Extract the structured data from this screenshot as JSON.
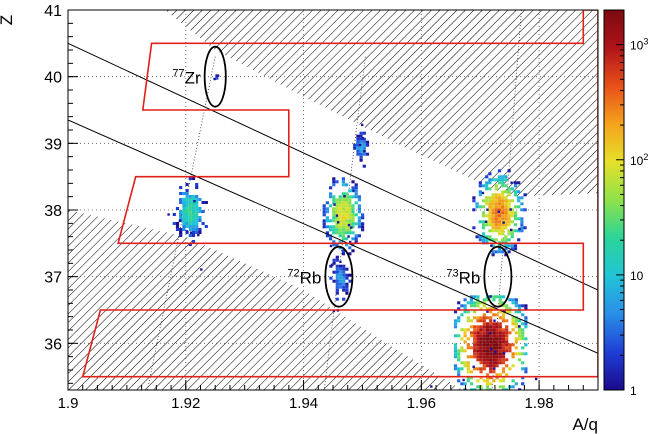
{
  "chart_data": {
    "type": "heatmap",
    "title": "",
    "xlabel": "A/q",
    "ylabel": "Z",
    "xlim": [
      1.9,
      1.99
    ],
    "ylim": [
      35.3,
      41.0
    ],
    "x_ticks": [
      "1.9",
      "1.92",
      "1.94",
      "1.96",
      "1.98"
    ],
    "x_tick_values": [
      1.9,
      1.92,
      1.94,
      1.96,
      1.98
    ],
    "y_ticks": [
      "36",
      "37",
      "38",
      "39",
      "40",
      "41"
    ],
    "y_tick_values": [
      36,
      37,
      38,
      39,
      40,
      41
    ],
    "grid": "dotted",
    "colorbar": {
      "scale": "log",
      "range": [
        1,
        2000
      ],
      "tick_values": [
        1,
        10,
        100,
        1000
      ],
      "labels": [
        {
          "base": "",
          "exp": "",
          "text": "1"
        },
        {
          "base": "",
          "exp": "",
          "text": "10"
        },
        {
          "base": "10",
          "exp": "2",
          "text": ""
        },
        {
          "base": "10",
          "exp": "3",
          "text": ""
        }
      ],
      "colors": [
        "#1a0a8c",
        "#1f3fd6",
        "#2a8ee8",
        "#21c4d6",
        "#2bd49a",
        "#8ee24a",
        "#e6e02a",
        "#f4a31c",
        "#e8501a",
        "#b0141a",
        "#7a0a10"
      ]
    },
    "clusters": [
      {
        "x": 1.9205,
        "y": 38.0,
        "peak_count": 20,
        "sx": 0.0011,
        "sy": 0.17
      },
      {
        "x": 1.9465,
        "y": 37.95,
        "peak_count": 90,
        "sx": 0.0012,
        "sy": 0.2
      },
      {
        "x": 1.9495,
        "y": 38.95,
        "peak_count": 6,
        "sx": 0.0007,
        "sy": 0.1
      },
      {
        "x": 1.946,
        "y": 37.0,
        "peak_count": 6,
        "sx": 0.0007,
        "sy": 0.12
      },
      {
        "x": 1.973,
        "y": 37.98,
        "peak_count": 300,
        "sx": 0.0014,
        "sy": 0.2
      },
      {
        "x": 1.9715,
        "y": 36.0,
        "peak_count": 2000,
        "sx": 0.0019,
        "sy": 0.24
      },
      {
        "x": 1.925,
        "y": 40.0,
        "peak_count": 3,
        "sx": 0.0001,
        "sy": 0.01
      }
    ],
    "annotations": [
      {
        "label": "Zr",
        "mass": "77",
        "ellipse_center": [
          1.925,
          40.0
        ],
        "ellipse_radii": [
          0.0018,
          0.45
        ]
      },
      {
        "label": "Rb",
        "mass": "72",
        "ellipse_center": [
          1.946,
          37.0
        ],
        "ellipse_radii": [
          0.0023,
          0.45
        ]
      },
      {
        "label": "Rb",
        "mass": "73",
        "ellipse_center": [
          1.973,
          37.0
        ],
        "ellipse_radii": [
          0.0023,
          0.45
        ]
      }
    ],
    "diagonal_lines": [
      {
        "from": [
          1.9,
          40.5
        ],
        "to": [
          1.99,
          36.8
        ]
      },
      {
        "from": [
          1.9,
          39.35
        ],
        "to": [
          1.99,
          35.85
        ]
      }
    ],
    "gate_polygon": [
      [
        1.9142,
        40.5
      ],
      [
        1.9875,
        40.5
      ],
      [
        1.9875,
        41.0
      ],
      [
        1.99,
        41.0
      ],
      [
        1.99,
        35.5
      ],
      [
        1.9025,
        35.5
      ],
      [
        1.9055,
        36.5
      ],
      [
        1.9875,
        36.5
      ],
      [
        1.9875,
        37.5
      ],
      [
        1.9085,
        37.5
      ],
      [
        1.9115,
        38.5
      ],
      [
        1.9375,
        38.5
      ],
      [
        1.9375,
        39.5
      ],
      [
        1.9127,
        39.5
      ]
    ],
    "hatched_regions": [
      {
        "name": "upper-right",
        "polygon": [
          [
            1.9165,
            41.0
          ],
          [
            1.99,
            41.0
          ],
          [
            1.99,
            38.25
          ],
          [
            1.975,
            38.2
          ],
          [
            1.957,
            38.95
          ],
          [
            1.94,
            39.7
          ],
          [
            1.925,
            40.4
          ]
        ]
      },
      {
        "name": "lower-left",
        "polygon": [
          [
            1.9,
            38.0
          ],
          [
            1.92,
            37.6
          ],
          [
            1.94,
            36.8
          ],
          [
            1.955,
            35.95
          ],
          [
            1.967,
            35.3
          ],
          [
            1.9,
            35.3
          ]
        ]
      }
    ],
    "dotted_lines": [
      {
        "from": [
          1.925,
          40.3
        ],
        "to": [
          1.9135,
          35.3
        ]
      },
      {
        "from": [
          1.9505,
          40.3
        ],
        "to": [
          1.9435,
          35.3
        ]
      },
      {
        "from": [
          1.977,
          41.0
        ],
        "to": [
          1.972,
          35.3
        ]
      }
    ]
  }
}
